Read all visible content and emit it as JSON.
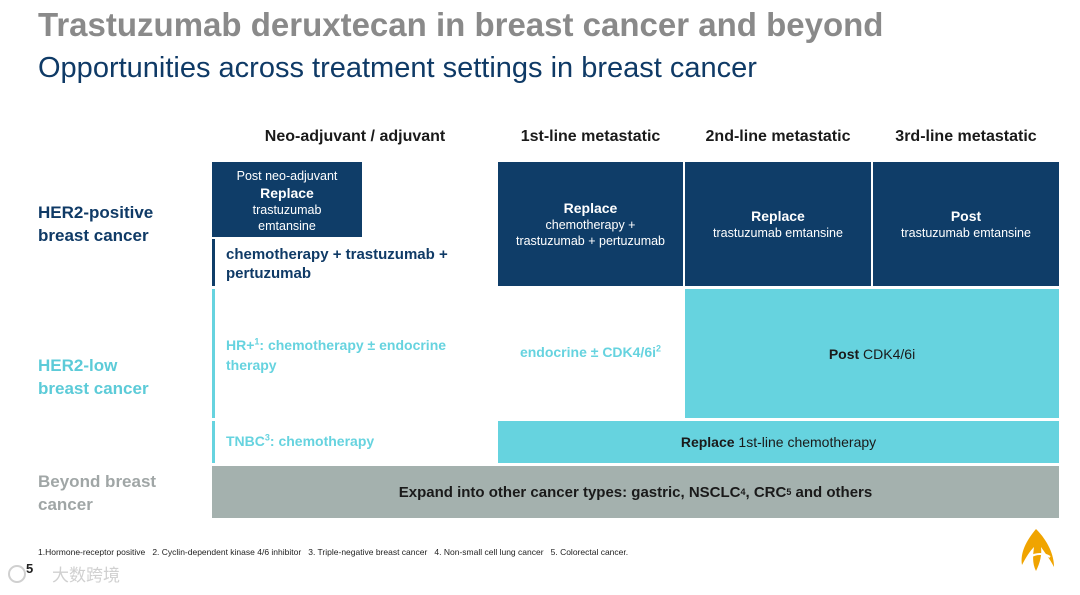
{
  "title": "Trastuzumab deruxtecan in breast cancer and beyond",
  "subtitle": "Opportunities across treatment settings in breast cancer",
  "columns": {
    "neo": "Neo-adjuvant / adjuvant",
    "first": "1st-line metastatic",
    "second": "2nd-line metastatic",
    "third": "3rd-line metastatic"
  },
  "rows": {
    "her2_pos": [
      "HER2-positive",
      "breast cancer"
    ],
    "her2_low": [
      "HER2-low",
      "breast cancer"
    ],
    "beyond": [
      "Beyond breast",
      "cancer"
    ]
  },
  "her2_pos": {
    "post_neo": {
      "prefix": "Post neo-adjuvant",
      "action": "Replace",
      "drug1": "trastuzumab",
      "drug2": "emtansine"
    },
    "adjuvant_regimen": [
      "chemotherapy + trastuzumab +",
      "pertuzumab"
    ],
    "first": {
      "action": "Replace",
      "line1": "chemotherapy +",
      "line2": "trastuzumab + pertuzumab"
    },
    "second": {
      "action": "Replace",
      "line1": "trastuzumab emtansine"
    },
    "third": {
      "action": "Post",
      "line1": "trastuzumab emtansine"
    }
  },
  "her2_low": {
    "hr_plus": {
      "prefix": "HR+",
      "sup": "1",
      "rest": ": chemotherapy ± endocrine",
      "line2": "therapy"
    },
    "endocrine": {
      "text": "endocrine ± CDK4/6i",
      "sup": "2"
    },
    "post_cdk": {
      "action": "Post",
      "text": "CDK4/6i"
    },
    "tnbc": {
      "prefix": "TNBC",
      "sup": "3",
      "rest": ": chemotherapy"
    },
    "replace_first": {
      "action": "Replace",
      "text": "1st-line chemotherapy"
    }
  },
  "beyond": {
    "expand": {
      "prefix": "Expand into other cancer types: gastric, NSCLC",
      "sup1": "4",
      "mid": ", CRC",
      "sup2": "5",
      "suffix": " and others"
    }
  },
  "footnotes": "1.Hormone-receptor positive   2. Cyclin-dependent kinase 4/6 inhibitor   3. Triple-negative breast cancer   4. Non-small cell lung cancer   5. Colorectal cancer.",
  "page_number": "5",
  "watermark": "大数跨境",
  "colors": {
    "navy": "#0f3d68",
    "teal": "#66d3df",
    "grey": "#a4b1ae",
    "title_grey": "#8a8a8a",
    "logo": "#f0a400"
  },
  "logo": {
    "icon": "astrazeneca-logo-icon"
  }
}
